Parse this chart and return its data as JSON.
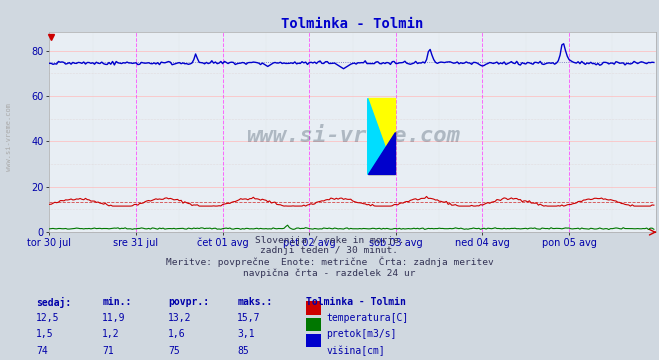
{
  "title": "Tolminka - Tolmin",
  "title_color": "#0000cc",
  "bg_color": "#d0d8e0",
  "plot_bg_color": "#e8eef4",
  "watermark": "www.si-vreme.com",
  "xlabel_bottom": "Slovenija / reke in morje.\nzadnji teden / 30 minut.\nMeritve: povprečne  Enote: metrične  Črta: zadnja meritev\nnavpična črta - razdelek 24 ur",
  "xticklabels": [
    "tor 30 jul",
    "sre 31 jul",
    "čet 01 avg",
    "pet 02 avg",
    "sob 03 avg",
    "ned 04 avg",
    "pon 05 avg"
  ],
  "yticks": [
    0,
    20,
    40,
    60,
    80
  ],
  "ylim": [
    0,
    88
  ],
  "xlim": [
    0,
    336
  ],
  "n_points": 336,
  "temp_color": "#cc0000",
  "pretok_color": "#007700",
  "visina_color": "#0000cc",
  "grid_color_h": "#ffbbbb",
  "grid_color_v_minor": "#ddbbdd",
  "vline_color": "#ff44ff",
  "table_header_cols": [
    "sedaj:",
    "min.:",
    "povpr.:",
    "maks.:",
    "Tolminka - Tolmin"
  ],
  "table_rows": [
    [
      "12,5",
      "11,9",
      "13,2",
      "15,7",
      "temperatura[C]",
      "#cc0000"
    ],
    [
      "1,5",
      "1,2",
      "1,6",
      "3,1",
      "pretok[m3/s]",
      "#007700"
    ],
    [
      "74",
      "71",
      "75",
      "85",
      "višina[cm]",
      "#0000cc"
    ]
  ],
  "sidebar_text": "www.si-vreme.com"
}
